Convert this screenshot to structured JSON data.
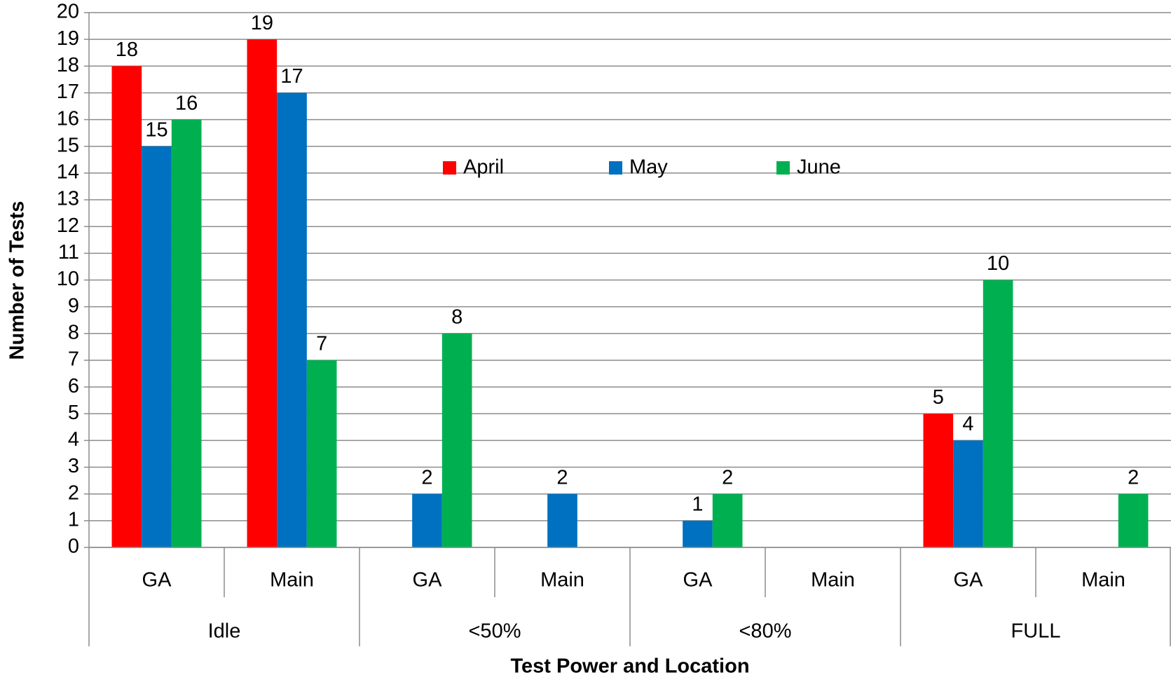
{
  "chart_data": {
    "type": "bar",
    "y_label": "Number of Tests",
    "x_label": "Test Power and Location",
    "groups": [
      {
        "name": "Idle",
        "categories": [
          "GA",
          "Main"
        ]
      },
      {
        "name": "<50%",
        "categories": [
          "GA",
          "Main"
        ]
      },
      {
        "name": "<80%",
        "categories": [
          "GA",
          "Main"
        ]
      },
      {
        "name": "FULL",
        "categories": [
          "GA",
          "Main"
        ]
      }
    ],
    "series": [
      {
        "name": "April",
        "color": "#ff0000",
        "values": [
          18,
          19,
          null,
          null,
          null,
          null,
          5,
          null
        ]
      },
      {
        "name": "May",
        "color": "#0070c0",
        "values": [
          15,
          17,
          2,
          2,
          1,
          null,
          4,
          null
        ]
      },
      {
        "name": "June",
        "color": "#00b050",
        "values": [
          16,
          7,
          8,
          null,
          2,
          null,
          10,
          2
        ]
      }
    ],
    "ylim": [
      0,
      20
    ],
    "yticks": [
      0,
      1,
      2,
      3,
      4,
      5,
      6,
      7,
      8,
      9,
      10,
      11,
      12,
      13,
      14,
      15,
      16,
      17,
      18,
      19,
      20
    ],
    "grid": true
  }
}
